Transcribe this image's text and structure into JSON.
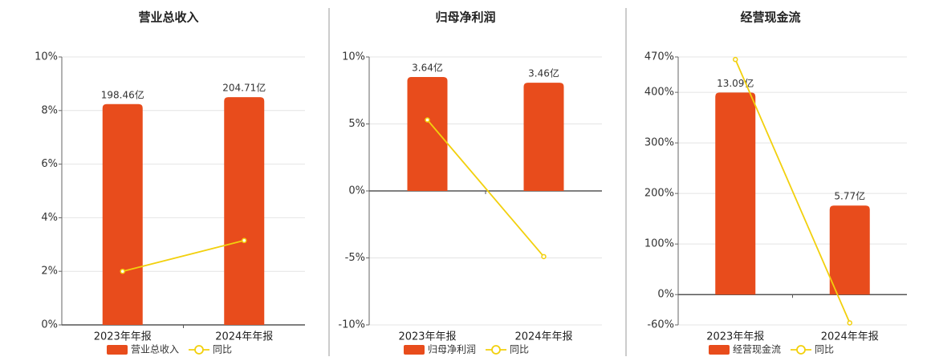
{
  "chart_data": [
    {
      "type": "combo",
      "title": "营业总收入",
      "categories": [
        "2023年年报",
        "2024年年报"
      ],
      "series": [
        {
          "name": "营业总收入",
          "mark": "bar",
          "color": "#e84c1c",
          "values": [
            198.46,
            204.71
          ],
          "value_labels": [
            "198.46亿",
            "204.71亿"
          ]
        },
        {
          "name": "同比",
          "mark": "line",
          "color": "#f2d00d",
          "values": [
            2.0,
            3.15
          ]
        }
      ],
      "ylim": [
        0,
        10
      ],
      "yticks": [
        {
          "value": 0,
          "label": "0%"
        },
        {
          "value": 2,
          "label": "2%"
        },
        {
          "value": 4,
          "label": "4%"
        },
        {
          "value": 6,
          "label": "6%"
        },
        {
          "value": 8,
          "label": "8%"
        },
        {
          "value": 10,
          "label": "10%"
        }
      ],
      "grid": true
    },
    {
      "type": "combo",
      "title": "归母净利润",
      "categories": [
        "2023年年报",
        "2024年年报"
      ],
      "series": [
        {
          "name": "归母净利润",
          "mark": "bar",
          "color": "#e84c1c",
          "values": [
            3.64,
            3.46
          ],
          "value_labels": [
            "3.64亿",
            "3.46亿"
          ]
        },
        {
          "name": "同比",
          "mark": "line",
          "color": "#f2d00d",
          "values": [
            5.3,
            -4.9
          ]
        }
      ],
      "ylim": [
        -10,
        10
      ],
      "yticks": [
        {
          "value": -10,
          "label": "-10%"
        },
        {
          "value": -5,
          "label": "-5%"
        },
        {
          "value": 0,
          "label": "0%"
        },
        {
          "value": 5,
          "label": "5%"
        },
        {
          "value": 10,
          "label": "10%"
        }
      ],
      "grid": true
    },
    {
      "type": "combo",
      "title": "经营现金流",
      "categories": [
        "2023年年报",
        "2024年年报"
      ],
      "series": [
        {
          "name": "经营现金流",
          "mark": "bar",
          "color": "#e84c1c",
          "values": [
            13.09,
            5.77
          ],
          "value_labels": [
            "13.09亿",
            "5.77亿"
          ]
        },
        {
          "name": "同比",
          "mark": "line",
          "color": "#f2d00d",
          "values": [
            465,
            -56
          ]
        }
      ],
      "ylim": [
        -60,
        470
      ],
      "yticks": [
        {
          "value": -60,
          "label": "-60%"
        },
        {
          "value": 0,
          "label": "0%"
        },
        {
          "value": 100,
          "label": "100%"
        },
        {
          "value": 200,
          "label": "200%"
        },
        {
          "value": 300,
          "label": "300%"
        },
        {
          "value": 400,
          "label": "400%"
        },
        {
          "value": 470,
          "label": "470%"
        }
      ],
      "grid": true
    }
  ]
}
